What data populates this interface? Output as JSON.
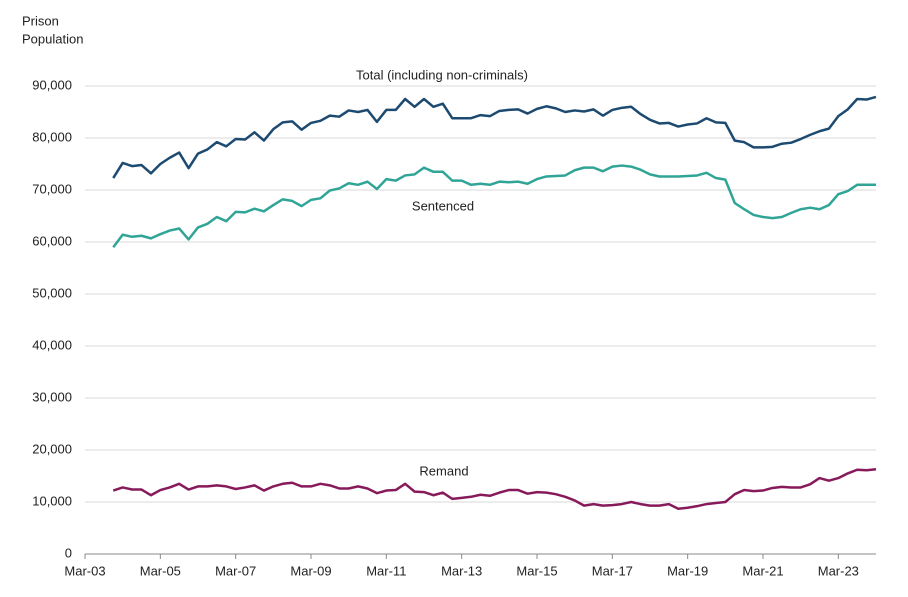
{
  "chart_data": {
    "type": "line",
    "ylabel": [
      "Prison",
      "Population"
    ],
    "annotations": [
      "Total (including non-criminals)",
      "Sentenced",
      "Remand"
    ],
    "x": [
      3,
      4,
      5,
      6,
      7,
      8,
      9,
      10,
      11,
      12,
      13,
      14,
      15,
      16,
      17,
      18,
      19,
      20,
      21,
      22,
      23,
      24,
      25,
      26,
      27,
      28,
      29,
      30,
      31,
      32,
      33,
      34,
      35,
      36,
      37,
      38,
      39,
      40,
      41,
      42,
      43,
      44,
      45,
      46,
      47,
      48,
      49,
      50,
      51,
      52,
      53,
      54,
      55,
      56,
      57,
      58,
      59,
      60,
      61,
      62,
      63,
      64,
      65,
      66,
      67,
      68,
      69,
      70,
      71,
      72,
      73,
      74,
      75,
      76,
      77,
      78,
      79,
      80,
      81,
      82,
      83,
      84
    ],
    "series": [
      {
        "name": "Total (including non-criminals)",
        "color": "#1d4a70",
        "values": [
          72300,
          75200,
          74600,
          74800,
          73200,
          75000,
          76200,
          77200,
          74200,
          77000,
          77800,
          79200,
          78400,
          79800,
          79700,
          81100,
          79500,
          81700,
          83000,
          83200,
          81600,
          82900,
          83300,
          84300,
          84100,
          85300,
          85000,
          85400,
          83100,
          85400,
          85400,
          87500,
          86000,
          87500,
          86000,
          86600,
          83800,
          83800,
          83800,
          84400,
          84200,
          85200,
          85400,
          85500,
          84700,
          85600,
          86100,
          85700,
          85000,
          85300,
          85100,
          85500,
          84300,
          85400,
          85800,
          86000,
          84600,
          83500,
          82800,
          82900,
          82200,
          82600,
          82800,
          83800,
          83000,
          82900,
          79500,
          79200,
          78200,
          78200,
          78300,
          78900,
          79100,
          79800,
          80600,
          81300,
          81800,
          84200,
          85500,
          87500,
          87400,
          87900
        ]
      },
      {
        "name": "Sentenced",
        "color": "#30a597",
        "values": [
          59000,
          61400,
          61000,
          61200,
          60700,
          61500,
          62200,
          62600,
          60500,
          62800,
          63500,
          64800,
          64000,
          65800,
          65700,
          66400,
          65900,
          67100,
          68200,
          67900,
          66900,
          68100,
          68400,
          69900,
          70300,
          71300,
          71000,
          71600,
          70200,
          72100,
          71800,
          72800,
          73000,
          74300,
          73500,
          73500,
          71800,
          71800,
          71000,
          71200,
          71000,
          71600,
          71500,
          71600,
          71200,
          72100,
          72600,
          72700,
          72800,
          73800,
          74300,
          74300,
          73600,
          74500,
          74700,
          74500,
          73900,
          73000,
          72600,
          72600,
          72600,
          72700,
          72800,
          73300,
          72300,
          72000,
          67500,
          66300,
          65200,
          64800,
          64600,
          64800,
          65600,
          66300,
          66600,
          66300,
          67100,
          69200,
          69800,
          71000,
          71000,
          71000
        ]
      },
      {
        "name": "Remand",
        "color": "#871a5b",
        "values": [
          12200,
          12800,
          12400,
          12400,
          11300,
          12300,
          12800,
          13500,
          12400,
          13000,
          13000,
          13200,
          13000,
          12500,
          12800,
          13200,
          12200,
          13000,
          13500,
          13700,
          13000,
          13000,
          13500,
          13200,
          12600,
          12600,
          13000,
          12600,
          11700,
          12200,
          12300,
          13500,
          12000,
          11900,
          11300,
          11800,
          10600,
          10800,
          11000,
          11400,
          11200,
          11800,
          12300,
          12300,
          11600,
          11900,
          11800,
          11500,
          11000,
          10300,
          9300,
          9600,
          9300,
          9400,
          9600,
          10000,
          9600,
          9300,
          9300,
          9600,
          8700,
          8900,
          9200,
          9600,
          9800,
          10000,
          11500,
          12300,
          12100,
          12200,
          12700,
          12900,
          12800,
          12800,
          13400,
          14600,
          14100,
          14600,
          15500,
          16200,
          16100,
          16300
        ]
      }
    ],
    "xlim": [
      0,
      84
    ],
    "xticks": [
      {
        "value": 0,
        "label": "Mar-03"
      },
      {
        "value": 8,
        "label": "Mar-05"
      },
      {
        "value": 16,
        "label": "Mar-07"
      },
      {
        "value": 24,
        "label": "Mar-09"
      },
      {
        "value": 32,
        "label": "Mar-11"
      },
      {
        "value": 40,
        "label": "Mar-13"
      },
      {
        "value": 48,
        "label": "Mar-15"
      },
      {
        "value": 56,
        "label": "Mar-17"
      },
      {
        "value": 64,
        "label": "Mar-19"
      },
      {
        "value": 72,
        "label": "Mar-21"
      },
      {
        "value": 80,
        "label": "Mar-23"
      }
    ],
    "ylim": [
      0,
      90000
    ],
    "yticks": [
      0,
      {
        "value": 10000,
        "label": "10,000"
      },
      {
        "value": 20000,
        "label": "20,000"
      },
      {
        "value": 30000,
        "label": "30,000"
      },
      {
        "value": 40000,
        "label": "40,000"
      },
      {
        "value": 50000,
        "label": "50,000"
      },
      {
        "value": 60000,
        "label": "60,000"
      },
      {
        "value": 70000,
        "label": "70,000"
      },
      {
        "value": 80000,
        "label": "80,000"
      },
      {
        "value": 90000,
        "label": "90,000"
      }
    ],
    "grid": true
  }
}
